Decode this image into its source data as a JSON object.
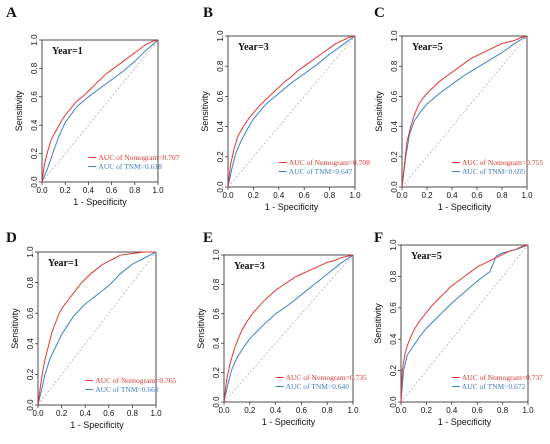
{
  "figure": {
    "colors": {
      "nomogram": "#e0392f",
      "tnm": "#3f7fc8",
      "reference": "#b0b0b0",
      "axis": "#222222"
    },
    "axis_titles": {
      "x": "1 - Specificity",
      "y": "Sensitivity"
    }
  },
  "chart_data": [
    {
      "panel": "A",
      "type": "line",
      "title": "Year=1",
      "xlabel": "1 - Specificity",
      "ylabel": "Sensitivity",
      "xlim": [
        0,
        1
      ],
      "ylim": [
        0,
        1
      ],
      "x_ticks": [
        "0.0",
        "0.2",
        "0.4",
        "0.6",
        "0.8",
        "1.0"
      ],
      "y_ticks": [
        "0.0",
        "0.2",
        "0.4",
        "0.6",
        "0.8",
        "1.0"
      ],
      "legend_position": "bottom-right",
      "legend": [
        "AUC of Nomogram=0.707",
        "AUC of TNM=0.618"
      ],
      "series": [
        {
          "name": "AUC of Nomogram=0.707",
          "x": [
            0,
            0.02,
            0.05,
            0.08,
            0.12,
            0.16,
            0.2,
            0.25,
            0.3,
            0.35,
            0.4,
            0.45,
            0.5,
            0.55,
            0.6,
            0.65,
            0.7,
            0.75,
            0.8,
            0.85,
            0.9,
            0.95,
            1.0
          ],
          "y": [
            0,
            0.12,
            0.22,
            0.3,
            0.36,
            0.42,
            0.47,
            0.52,
            0.57,
            0.6,
            0.64,
            0.68,
            0.72,
            0.76,
            0.79,
            0.82,
            0.85,
            0.88,
            0.91,
            0.94,
            0.97,
            0.99,
            1.0
          ]
        },
        {
          "name": "AUC of TNM=0.618",
          "x": [
            0,
            0.05,
            0.1,
            0.15,
            0.2,
            0.3,
            0.4,
            0.5,
            0.6,
            0.7,
            0.8,
            0.9,
            1.0
          ],
          "y": [
            0,
            0.1,
            0.22,
            0.33,
            0.42,
            0.53,
            0.6,
            0.66,
            0.72,
            0.78,
            0.85,
            0.93,
            1.0
          ]
        }
      ]
    },
    {
      "panel": "B",
      "type": "line",
      "title": "Year=3",
      "xlabel": "1 - Specificity",
      "ylabel": "Sensitivity",
      "xlim": [
        0,
        1
      ],
      "ylim": [
        0,
        1
      ],
      "x_ticks": [
        "0.0",
        "0.2",
        "0.4",
        "0.6",
        "0.8",
        "1.0"
      ],
      "y_ticks": [
        "0.0",
        "0.2",
        "0.4",
        "0.6",
        "0.8",
        "1.0"
      ],
      "legend_position": "bottom-right",
      "legend": [
        "AUC of Nomogram=0.708",
        "AUC of TNM=0.647"
      ],
      "series": [
        {
          "name": "AUC of Nomogram=0.708",
          "x": [
            0,
            0.02,
            0.05,
            0.08,
            0.12,
            0.16,
            0.2,
            0.25,
            0.3,
            0.35,
            0.4,
            0.45,
            0.5,
            0.55,
            0.6,
            0.65,
            0.7,
            0.75,
            0.8,
            0.85,
            0.9,
            0.95,
            1.0
          ],
          "y": [
            0,
            0.15,
            0.26,
            0.34,
            0.4,
            0.45,
            0.49,
            0.54,
            0.58,
            0.62,
            0.66,
            0.7,
            0.73,
            0.77,
            0.8,
            0.83,
            0.86,
            0.89,
            0.92,
            0.95,
            0.97,
            0.99,
            1.0
          ]
        },
        {
          "name": "AUC of TNM=0.647",
          "x": [
            0,
            0.03,
            0.06,
            0.1,
            0.15,
            0.2,
            0.3,
            0.4,
            0.5,
            0.6,
            0.7,
            0.8,
            0.9,
            1.0
          ],
          "y": [
            0,
            0.12,
            0.22,
            0.3,
            0.38,
            0.45,
            0.55,
            0.62,
            0.69,
            0.75,
            0.81,
            0.88,
            0.94,
            1.0
          ]
        }
      ]
    },
    {
      "panel": "C",
      "type": "line",
      "title": "Year=5",
      "xlabel": "1 - Specificity",
      "ylabel": "Sensitivity",
      "xlim": [
        0,
        1
      ],
      "ylim": [
        0,
        1
      ],
      "x_ticks": [
        "0.0",
        "0.2",
        "0.4",
        "0.6",
        "0.8",
        "1.0"
      ],
      "y_ticks": [
        "0.0",
        "0.2",
        "0.4",
        "0.6",
        "0.8",
        "1.0"
      ],
      "legend_position": "bottom-right",
      "legend": [
        "AUC of Nomogram=0.755",
        "AUC of TNM=0.695"
      ],
      "series": [
        {
          "name": "AUC of Nomogram=0.755",
          "x": [
            0,
            0.02,
            0.04,
            0.07,
            0.1,
            0.13,
            0.16,
            0.2,
            0.25,
            0.3,
            0.35,
            0.4,
            0.45,
            0.5,
            0.55,
            0.6,
            0.65,
            0.7,
            0.75,
            0.8,
            0.85,
            0.9,
            0.95,
            1.0
          ],
          "y": [
            0,
            0.15,
            0.3,
            0.4,
            0.48,
            0.54,
            0.58,
            0.62,
            0.66,
            0.7,
            0.73,
            0.76,
            0.79,
            0.82,
            0.85,
            0.87,
            0.89,
            0.91,
            0.93,
            0.95,
            0.96,
            0.97,
            0.99,
            1.0
          ]
        },
        {
          "name": "AUC of TNM=0.695",
          "x": [
            0,
            0.03,
            0.06,
            0.1,
            0.15,
            0.2,
            0.3,
            0.4,
            0.5,
            0.6,
            0.7,
            0.8,
            0.9,
            1.0
          ],
          "y": [
            0,
            0.2,
            0.35,
            0.44,
            0.5,
            0.55,
            0.62,
            0.68,
            0.74,
            0.79,
            0.84,
            0.89,
            0.95,
            1.0
          ]
        }
      ]
    },
    {
      "panel": "D",
      "type": "line",
      "title": "Year=1",
      "xlabel": "1 - Specificity",
      "ylabel": "Sensitivity",
      "xlim": [
        0,
        1
      ],
      "ylim": [
        0,
        1
      ],
      "x_ticks": [
        "0.0",
        "0.2",
        "0.4",
        "0.6",
        "0.8",
        "1.0"
      ],
      "y_ticks": [
        "0.0",
        "0.2",
        "0.4",
        "0.6",
        "0.8",
        "1.0"
      ],
      "legend_position": "bottom-right",
      "legend": [
        "AUC of Nomogram=0.765",
        "AUC of TNM=0.668"
      ],
      "series": [
        {
          "name": "AUC of Nomogram=0.765",
          "x": [
            0,
            0.02,
            0.04,
            0.06,
            0.08,
            0.1,
            0.12,
            0.15,
            0.18,
            0.21,
            0.25,
            0.29,
            0.33,
            0.37,
            0.41,
            0.45,
            0.5,
            0.55,
            0.6,
            0.65,
            0.7,
            0.8,
            0.9,
            1.0
          ],
          "y": [
            0,
            0.12,
            0.22,
            0.3,
            0.36,
            0.42,
            0.48,
            0.54,
            0.6,
            0.64,
            0.68,
            0.72,
            0.76,
            0.8,
            0.83,
            0.86,
            0.89,
            0.92,
            0.94,
            0.96,
            0.98,
            0.99,
            1.0,
            1.0
          ]
        },
        {
          "name": "AUC of TNM=0.668",
          "x": [
            0,
            0.03,
            0.06,
            0.1,
            0.15,
            0.2,
            0.25,
            0.3,
            0.4,
            0.5,
            0.6,
            0.7,
            0.8,
            0.9,
            1.0
          ],
          "y": [
            0,
            0.1,
            0.2,
            0.3,
            0.38,
            0.46,
            0.52,
            0.58,
            0.66,
            0.72,
            0.78,
            0.86,
            0.92,
            0.96,
            1.0
          ]
        }
      ]
    },
    {
      "panel": "E",
      "type": "line",
      "title": "Year=3",
      "xlabel": "1 - Specificity",
      "ylabel": "Sensitivity",
      "xlim": [
        0,
        1
      ],
      "ylim": [
        0,
        1
      ],
      "x_ticks": [
        "0.0",
        "0.2",
        "0.4",
        "0.6",
        "0.8",
        "1.0"
      ],
      "y_ticks": [
        "0.0",
        "0.2",
        "0.4",
        "0.6",
        "0.8",
        "1.0"
      ],
      "legend_position": "bottom-right",
      "legend": [
        "AUC of Nomogram=0.735",
        "AUC of TNM=0.640"
      ],
      "series": [
        {
          "name": "AUC of Nomogram=0.735",
          "x": [
            0,
            0.02,
            0.05,
            0.08,
            0.11,
            0.14,
            0.18,
            0.22,
            0.26,
            0.3,
            0.35,
            0.4,
            0.45,
            0.5,
            0.55,
            0.6,
            0.65,
            0.7,
            0.75,
            0.8,
            0.85,
            0.9,
            0.95,
            1.0
          ],
          "y": [
            0,
            0.15,
            0.27,
            0.36,
            0.43,
            0.49,
            0.55,
            0.6,
            0.64,
            0.68,
            0.72,
            0.76,
            0.79,
            0.82,
            0.85,
            0.87,
            0.89,
            0.91,
            0.93,
            0.95,
            0.96,
            0.98,
            0.99,
            1.0
          ]
        },
        {
          "name": "AUC of TNM=0.640",
          "x": [
            0,
            0.03,
            0.06,
            0.1,
            0.15,
            0.2,
            0.3,
            0.4,
            0.5,
            0.6,
            0.7,
            0.8,
            0.9,
            1.0
          ],
          "y": [
            0,
            0.12,
            0.22,
            0.3,
            0.37,
            0.43,
            0.52,
            0.6,
            0.66,
            0.73,
            0.8,
            0.87,
            0.94,
            1.0
          ]
        }
      ]
    },
    {
      "panel": "F",
      "type": "line",
      "title": "Year=5",
      "xlabel": "1 - Specificity",
      "ylabel": "Sensitivity",
      "xlim": [
        0,
        1
      ],
      "ylim": [
        0,
        1
      ],
      "x_ticks": [
        "0.0",
        "0.2",
        "0.4",
        "0.6",
        "0.8",
        "1.0"
      ],
      "y_ticks": [
        "0.0",
        "0.2",
        "0.4",
        "0.6",
        "0.8",
        "1.0"
      ],
      "legend_position": "bottom-right",
      "legend": [
        "AUC of Nomogram=0.737",
        "AUC of TNM=0.672"
      ],
      "series": [
        {
          "name": "AUC of Nomogram=0.737",
          "x": [
            0,
            0.01,
            0.03,
            0.05,
            0.08,
            0.11,
            0.15,
            0.2,
            0.25,
            0.3,
            0.35,
            0.4,
            0.45,
            0.5,
            0.55,
            0.6,
            0.65,
            0.7,
            0.75,
            0.8,
            0.85,
            0.9,
            0.95,
            1.0
          ],
          "y": [
            0,
            0.2,
            0.3,
            0.36,
            0.42,
            0.47,
            0.52,
            0.57,
            0.62,
            0.66,
            0.7,
            0.74,
            0.77,
            0.8,
            0.83,
            0.86,
            0.88,
            0.9,
            0.92,
            0.94,
            0.96,
            0.97,
            0.99,
            1.0
          ]
        },
        {
          "name": "AUC of TNM=0.672",
          "x": [
            0,
            0.02,
            0.05,
            0.1,
            0.15,
            0.2,
            0.3,
            0.4,
            0.5,
            0.6,
            0.7,
            0.75,
            0.8,
            0.9,
            1.0
          ],
          "y": [
            0,
            0.2,
            0.3,
            0.36,
            0.42,
            0.47,
            0.55,
            0.63,
            0.7,
            0.77,
            0.83,
            0.93,
            0.95,
            0.97,
            1.0
          ]
        }
      ]
    }
  ]
}
